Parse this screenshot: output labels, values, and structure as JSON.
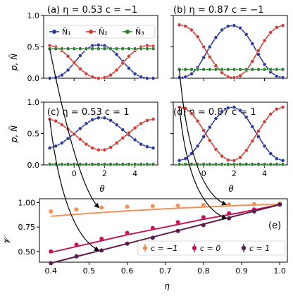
{
  "chart_data": [
    {
      "type": "line",
      "panel": "(a)",
      "title": "(a) η = 0.53  c = −1",
      "ylabel": "p, Ñ",
      "xlabel": "",
      "xlim": [
        -2.0,
        5.5
      ],
      "ylim": [
        0,
        1.0
      ],
      "yticks": [
        "0.0",
        "0.5",
        "1.0"
      ],
      "x": [
        -1.6,
        -1.2,
        -0.8,
        -0.4,
        0.0,
        0.4,
        0.8,
        1.2,
        1.6,
        2.0,
        2.4,
        2.8,
        3.2,
        3.6,
        4.0,
        4.4,
        4.8,
        5.2
      ],
      "series": [
        {
          "name": "Ñ₁",
          "color": "#2b3a9a",
          "values": [
            0.0,
            0.01,
            0.05,
            0.13,
            0.24,
            0.36,
            0.46,
            0.52,
            0.53,
            0.52,
            0.47,
            0.38,
            0.27,
            0.16,
            0.07,
            0.02,
            0.0,
            0.0
          ]
        },
        {
          "name": "Ñ₂",
          "color": "#d23b35",
          "values": [
            0.52,
            0.5,
            0.44,
            0.35,
            0.25,
            0.15,
            0.07,
            0.02,
            0.0,
            0.01,
            0.05,
            0.13,
            0.24,
            0.35,
            0.44,
            0.5,
            0.52,
            0.51
          ]
        },
        {
          "name": "Ñ₃",
          "color": "#2e7d32",
          "values": [
            0.47,
            0.47,
            0.47,
            0.47,
            0.47,
            0.47,
            0.47,
            0.47,
            0.47,
            0.47,
            0.47,
            0.47,
            0.47,
            0.47,
            0.47,
            0.47,
            0.47,
            0.47
          ]
        }
      ],
      "legend": "top"
    },
    {
      "type": "line",
      "panel": "(b)",
      "title": "(b) η = 0.87  c = −1",
      "xlabel": "",
      "xlim": [
        -2.0,
        5.5
      ],
      "ylim": [
        0,
        1.0
      ],
      "x": [
        -1.6,
        -1.2,
        -0.8,
        -0.4,
        0.0,
        0.4,
        0.8,
        1.2,
        1.6,
        2.0,
        2.4,
        2.8,
        3.2,
        3.6,
        4.0,
        4.4,
        4.8,
        5.2
      ],
      "series": [
        {
          "name": "Ñ₁",
          "color": "#2b3a9a",
          "values": [
            0.01,
            0.02,
            0.07,
            0.17,
            0.33,
            0.5,
            0.65,
            0.77,
            0.83,
            0.84,
            0.8,
            0.7,
            0.55,
            0.38,
            0.22,
            0.1,
            0.03,
            0.01
          ]
        },
        {
          "name": "Ñ₂",
          "color": "#d23b35",
          "values": [
            0.85,
            0.83,
            0.77,
            0.66,
            0.5,
            0.34,
            0.2,
            0.09,
            0.02,
            0.01,
            0.04,
            0.12,
            0.27,
            0.44,
            0.6,
            0.73,
            0.81,
            0.84
          ]
        },
        {
          "name": "Ñ₃",
          "color": "#2e7d32",
          "values": [
            0.14,
            0.14,
            0.14,
            0.14,
            0.14,
            0.14,
            0.14,
            0.14,
            0.14,
            0.14,
            0.14,
            0.14,
            0.14,
            0.14,
            0.14,
            0.14,
            0.14,
            0.14
          ]
        }
      ]
    },
    {
      "type": "line",
      "panel": "(c)",
      "title": "(c) η = 0.53  c = 1",
      "ylabel": "p, Ñ",
      "xlabel": "θ",
      "xlim": [
        -2.0,
        5.5
      ],
      "ylim": [
        0,
        1.0
      ],
      "xticks": [
        "0",
        "2",
        "4"
      ],
      "yticks": [
        "0.0",
        "0.5",
        "1.0"
      ],
      "x": [
        -1.6,
        -1.2,
        -0.8,
        -0.4,
        0.0,
        0.4,
        0.8,
        1.2,
        1.6,
        2.0,
        2.4,
        2.8,
        3.2,
        3.6,
        4.0,
        4.4,
        4.8,
        5.2
      ],
      "series": [
        {
          "name": "Ñ₁",
          "color": "#2b3a9a",
          "values": [
            0.27,
            0.3,
            0.35,
            0.42,
            0.5,
            0.58,
            0.66,
            0.72,
            0.75,
            0.75,
            0.71,
            0.64,
            0.56,
            0.48,
            0.4,
            0.33,
            0.29,
            0.27
          ]
        },
        {
          "name": "Ñ₂",
          "color": "#d23b35",
          "values": [
            0.73,
            0.7,
            0.64,
            0.57,
            0.49,
            0.41,
            0.33,
            0.27,
            0.24,
            0.24,
            0.28,
            0.35,
            0.43,
            0.51,
            0.59,
            0.66,
            0.71,
            0.73
          ]
        },
        {
          "name": "Ñ₃",
          "color": "#2e7d32",
          "values": [
            0.01,
            0.01,
            0.01,
            0.01,
            0.01,
            0.01,
            0.01,
            0.01,
            0.01,
            0.01,
            0.01,
            0.01,
            0.01,
            0.01,
            0.01,
            0.01,
            0.01,
            0.01
          ]
        }
      ]
    },
    {
      "type": "line",
      "panel": "(d)",
      "title": "(d) η = 0.87  c = 1",
      "xlabel": "θ",
      "xlim": [
        -2.0,
        5.5
      ],
      "ylim": [
        0,
        1.0
      ],
      "xticks": [
        "0",
        "2",
        "4"
      ],
      "x": [
        -1.6,
        -1.2,
        -0.8,
        -0.4,
        0.0,
        0.4,
        0.8,
        1.2,
        1.6,
        2.0,
        2.4,
        2.8,
        3.2,
        3.6,
        4.0,
        4.4,
        4.8,
        5.2
      ],
      "series": [
        {
          "name": "Ñ₁",
          "color": "#2b3a9a",
          "values": [
            0.07,
            0.1,
            0.18,
            0.3,
            0.45,
            0.6,
            0.74,
            0.85,
            0.91,
            0.92,
            0.87,
            0.76,
            0.61,
            0.45,
            0.3,
            0.18,
            0.1,
            0.07
          ]
        },
        {
          "name": "Ñ₂",
          "color": "#d23b35",
          "values": [
            0.92,
            0.9,
            0.82,
            0.7,
            0.55,
            0.39,
            0.25,
            0.14,
            0.08,
            0.07,
            0.12,
            0.23,
            0.38,
            0.54,
            0.69,
            0.81,
            0.89,
            0.92
          ]
        },
        {
          "name": "Ñ₃",
          "color": "#2e7d32",
          "values": [
            0.01,
            0.01,
            0.01,
            0.01,
            0.01,
            0.01,
            0.01,
            0.01,
            0.01,
            0.01,
            0.01,
            0.01,
            0.01,
            0.01,
            0.01,
            0.01,
            0.01,
            0.01
          ]
        }
      ]
    },
    {
      "type": "scatter",
      "panel": "(e)",
      "title": "(e)",
      "xlabel": "η",
      "ylabel": "𝓥",
      "xlim": [
        0.37,
        1.02
      ],
      "ylim": [
        0.39,
        1.04
      ],
      "xticks": [
        0.4,
        0.5,
        0.6,
        0.7,
        0.8,
        0.9,
        1.0
      ],
      "yticks": [
        0.5,
        0.75,
        1.0
      ],
      "xtick_labels": [
        "0.4",
        "0.5",
        "0.6",
        "0.7",
        "0.8",
        "0.9",
        "1.0"
      ],
      "ytick_labels": [
        "0.50",
        "0.75",
        "1.00"
      ],
      "legend": "bottom-right",
      "series": [
        {
          "name": "c = −1",
          "color": "#f0935a",
          "points": [
            [
              0.4,
              0.91
            ],
            [
              0.467,
              0.93
            ],
            [
              0.533,
              0.95
            ],
            [
              0.6,
              0.96
            ],
            [
              0.667,
              0.965
            ],
            [
              0.733,
              0.97
            ],
            [
              0.8,
              0.975
            ],
            [
              0.867,
              0.98
            ],
            [
              0.933,
              0.985
            ],
            [
              1.0,
              0.99
            ]
          ],
          "curve": [
            [
              0.4,
              0.86
            ],
            [
              0.5,
              0.89
            ],
            [
              0.6,
              0.915
            ],
            [
              0.7,
              0.937
            ],
            [
              0.8,
              0.955
            ],
            [
              0.9,
              0.972
            ],
            [
              1.0,
              0.985
            ]
          ]
        },
        {
          "name": "c = 0",
          "color": "#c2185b",
          "points": [
            [
              0.4,
              0.5
            ],
            [
              0.467,
              0.57
            ],
            [
              0.533,
              0.63
            ],
            [
              0.6,
              0.69
            ],
            [
              0.667,
              0.74
            ],
            [
              0.733,
              0.8
            ],
            [
              0.8,
              0.85
            ],
            [
              0.867,
              0.89
            ],
            [
              0.933,
              0.93
            ],
            [
              1.0,
              0.98
            ]
          ],
          "curve": [
            [
              0.4,
              0.49
            ],
            [
              0.5,
              0.58
            ],
            [
              0.6,
              0.67
            ],
            [
              0.7,
              0.75
            ],
            [
              0.8,
              0.83
            ],
            [
              0.9,
              0.9
            ],
            [
              1.0,
              0.98
            ]
          ]
        },
        {
          "name": "c = 1",
          "color": "#5a1d4e",
          "points": [
            [
              0.4,
              0.38
            ],
            [
              0.467,
              0.45
            ],
            [
              0.533,
              0.51
            ],
            [
              0.6,
              0.58
            ],
            [
              0.667,
              0.64
            ],
            [
              0.733,
              0.71
            ],
            [
              0.8,
              0.77
            ],
            [
              0.867,
              0.84
            ],
            [
              0.933,
              0.91
            ],
            [
              1.0,
              0.98
            ]
          ],
          "curve": [
            [
              0.4,
              0.38
            ],
            [
              0.5,
              0.48
            ],
            [
              0.6,
              0.58
            ],
            [
              0.7,
              0.68
            ],
            [
              0.8,
              0.78
            ],
            [
              0.9,
              0.88
            ],
            [
              1.0,
              0.98
            ]
          ]
        }
      ]
    }
  ]
}
